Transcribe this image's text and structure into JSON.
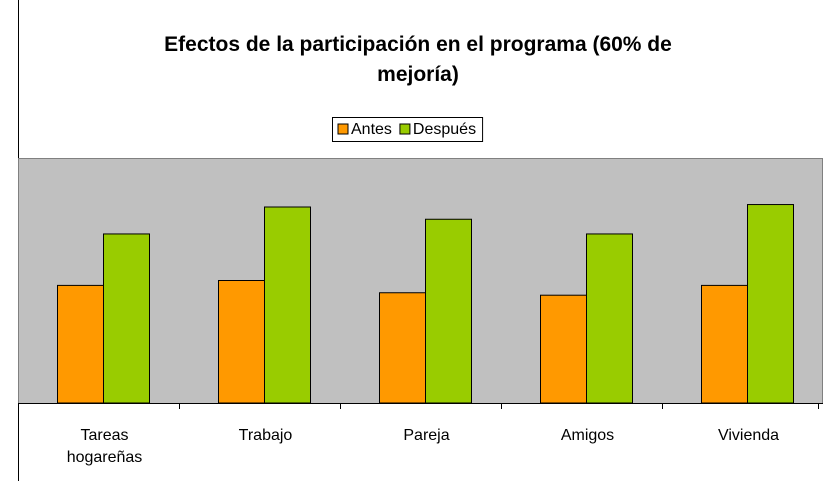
{
  "chart_data": {
    "type": "bar",
    "title": "Efectos de la participación en el programa (60% de mejoría)",
    "categories": [
      "Tareas hogareñas",
      "Trabajo",
      "Pareja",
      "Amigos",
      "Vivienda"
    ],
    "series": [
      {
        "name": "Antes",
        "color": "#ff9900",
        "values": [
          4.8,
          5.0,
          4.5,
          4.4,
          4.8
        ]
      },
      {
        "name": "Después",
        "color": "#99cc00",
        "values": [
          6.9,
          8.0,
          7.5,
          6.9,
          8.1
        ]
      }
    ],
    "ylim": [
      0,
      10
    ],
    "grid": false,
    "legend": "top",
    "plot_background": "#c0c0c0"
  }
}
